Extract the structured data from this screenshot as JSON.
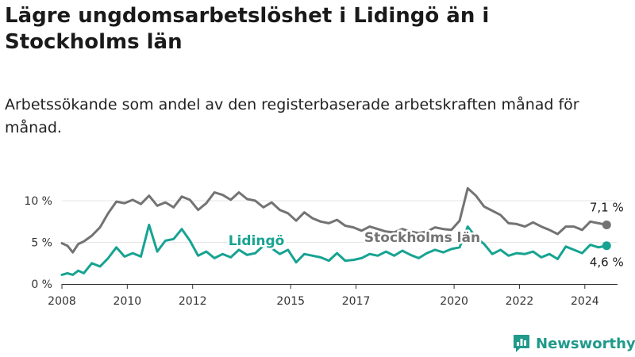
{
  "title": "Lägre ungdomsarbetslöshet i Lidingö än i Stockholms län",
  "subtitle": "Arbetssökande som andel av den registerbaserade arbetskraften månad för månad.",
  "brand": {
    "name": "Newsworthy",
    "icon": "newsworthy-logo-icon"
  },
  "colors": {
    "lidingo": "#17a392",
    "stockholm": "#737373",
    "axis": "#333333",
    "grid": "#e6e6e6"
  },
  "chart_data": {
    "type": "line",
    "x_ticks": [
      "2008",
      "2010",
      "2012",
      "2015",
      "2017",
      "2020",
      "2022",
      "2024"
    ],
    "y_ticks": [
      "0 %",
      "5 %",
      "10 %"
    ],
    "ylim": [
      0,
      12
    ],
    "xlim": [
      "2008-01",
      "2025-01"
    ],
    "grid": true,
    "legend": "inline-labels",
    "series": [
      {
        "name": "Stockholms län",
        "last_label": "7,1 %",
        "points": [
          [
            "2008-01",
            4.9
          ],
          [
            "2008-03",
            4.6
          ],
          [
            "2008-05",
            3.8
          ],
          [
            "2008-07",
            4.8
          ],
          [
            "2008-09",
            5.1
          ],
          [
            "2008-12",
            5.8
          ],
          [
            "2009-03",
            6.8
          ],
          [
            "2009-06",
            8.5
          ],
          [
            "2009-09",
            9.9
          ],
          [
            "2009-12",
            9.7
          ],
          [
            "2010-03",
            10.1
          ],
          [
            "2010-06",
            9.6
          ],
          [
            "2010-09",
            10.6
          ],
          [
            "2010-12",
            9.4
          ],
          [
            "2011-03",
            9.8
          ],
          [
            "2011-06",
            9.2
          ],
          [
            "2011-09",
            10.5
          ],
          [
            "2011-12",
            10.1
          ],
          [
            "2012-03",
            8.9
          ],
          [
            "2012-06",
            9.7
          ],
          [
            "2012-09",
            11.0
          ],
          [
            "2012-12",
            10.7
          ],
          [
            "2013-03",
            10.1
          ],
          [
            "2013-06",
            11.0
          ],
          [
            "2013-09",
            10.2
          ],
          [
            "2013-12",
            10.0
          ],
          [
            "2014-03",
            9.2
          ],
          [
            "2014-06",
            9.8
          ],
          [
            "2014-09",
            8.9
          ],
          [
            "2014-12",
            8.5
          ],
          [
            "2015-03",
            7.6
          ],
          [
            "2015-06",
            8.6
          ],
          [
            "2015-09",
            7.9
          ],
          [
            "2015-12",
            7.5
          ],
          [
            "2016-03",
            7.3
          ],
          [
            "2016-06",
            7.7
          ],
          [
            "2016-09",
            7.0
          ],
          [
            "2016-12",
            6.8
          ],
          [
            "2017-03",
            6.4
          ],
          [
            "2017-06",
            6.9
          ],
          [
            "2017-09",
            6.6
          ],
          [
            "2017-12",
            6.3
          ],
          [
            "2018-03",
            6.2
          ],
          [
            "2018-06",
            6.6
          ],
          [
            "2018-09",
            6.3
          ],
          [
            "2018-12",
            6.1
          ],
          [
            "2019-03",
            6.3
          ],
          [
            "2019-06",
            6.8
          ],
          [
            "2019-09",
            6.6
          ],
          [
            "2019-12",
            6.5
          ],
          [
            "2020-03",
            7.6
          ],
          [
            "2020-06",
            11.5
          ],
          [
            "2020-09",
            10.6
          ],
          [
            "2020-12",
            9.3
          ],
          [
            "2021-03",
            8.8
          ],
          [
            "2021-06",
            8.3
          ],
          [
            "2021-09",
            7.3
          ],
          [
            "2021-12",
            7.2
          ],
          [
            "2022-03",
            6.9
          ],
          [
            "2022-06",
            7.4
          ],
          [
            "2022-09",
            6.9
          ],
          [
            "2022-12",
            6.5
          ],
          [
            "2023-03",
            6.0
          ],
          [
            "2023-06",
            6.9
          ],
          [
            "2023-09",
            6.9
          ],
          [
            "2023-12",
            6.5
          ],
          [
            "2024-03",
            7.5
          ],
          [
            "2024-06",
            7.3
          ],
          [
            "2024-09",
            7.1
          ]
        ]
      },
      {
        "name": "Lidingö",
        "last_label": "4,6 %",
        "points": [
          [
            "2008-01",
            1.1
          ],
          [
            "2008-03",
            1.3
          ],
          [
            "2008-05",
            1.1
          ],
          [
            "2008-07",
            1.6
          ],
          [
            "2008-09",
            1.3
          ],
          [
            "2008-12",
            2.5
          ],
          [
            "2009-03",
            2.1
          ],
          [
            "2009-06",
            3.1
          ],
          [
            "2009-09",
            4.4
          ],
          [
            "2009-12",
            3.3
          ],
          [
            "2010-03",
            3.7
          ],
          [
            "2010-06",
            3.3
          ],
          [
            "2010-09",
            7.1
          ],
          [
            "2010-12",
            3.9
          ],
          [
            "2011-03",
            5.2
          ],
          [
            "2011-06",
            5.4
          ],
          [
            "2011-09",
            6.6
          ],
          [
            "2011-12",
            5.2
          ],
          [
            "2012-03",
            3.4
          ],
          [
            "2012-06",
            3.9
          ],
          [
            "2012-09",
            3.1
          ],
          [
            "2012-12",
            3.6
          ],
          [
            "2013-03",
            3.2
          ],
          [
            "2013-06",
            4.1
          ],
          [
            "2013-09",
            3.5
          ],
          [
            "2013-12",
            3.7
          ],
          [
            "2014-03",
            4.6
          ],
          [
            "2014-06",
            4.3
          ],
          [
            "2014-09",
            3.6
          ],
          [
            "2014-12",
            4.1
          ],
          [
            "2015-03",
            2.6
          ],
          [
            "2015-06",
            3.6
          ],
          [
            "2015-09",
            3.4
          ],
          [
            "2015-12",
            3.2
          ],
          [
            "2016-03",
            2.8
          ],
          [
            "2016-06",
            3.7
          ],
          [
            "2016-09",
            2.8
          ],
          [
            "2016-12",
            2.9
          ],
          [
            "2017-03",
            3.1
          ],
          [
            "2017-06",
            3.6
          ],
          [
            "2017-09",
            3.4
          ],
          [
            "2017-12",
            3.9
          ],
          [
            "2018-03",
            3.4
          ],
          [
            "2018-06",
            4.0
          ],
          [
            "2018-09",
            3.5
          ],
          [
            "2018-12",
            3.1
          ],
          [
            "2019-03",
            3.7
          ],
          [
            "2019-06",
            4.1
          ],
          [
            "2019-09",
            3.8
          ],
          [
            "2019-12",
            4.2
          ],
          [
            "2020-03",
            4.4
          ],
          [
            "2020-06",
            6.9
          ],
          [
            "2020-09",
            5.6
          ],
          [
            "2020-12",
            4.8
          ],
          [
            "2021-03",
            3.6
          ],
          [
            "2021-06",
            4.1
          ],
          [
            "2021-09",
            3.4
          ],
          [
            "2021-12",
            3.7
          ],
          [
            "2022-03",
            3.6
          ],
          [
            "2022-06",
            3.9
          ],
          [
            "2022-09",
            3.2
          ],
          [
            "2022-12",
            3.6
          ],
          [
            "2023-03",
            3.0
          ],
          [
            "2023-06",
            4.5
          ],
          [
            "2023-09",
            4.1
          ],
          [
            "2023-12",
            3.7
          ],
          [
            "2024-03",
            4.7
          ],
          [
            "2024-06",
            4.4
          ],
          [
            "2024-09",
            4.6
          ]
        ]
      }
    ]
  }
}
